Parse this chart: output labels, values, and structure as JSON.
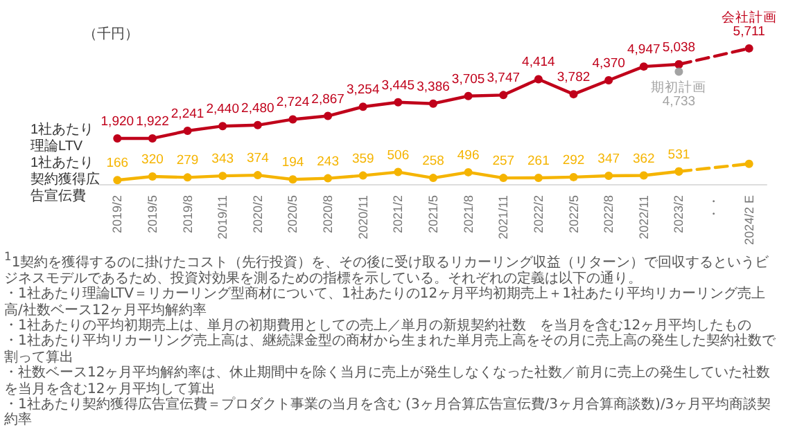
{
  "chart_data": {
    "type": "line",
    "categories": [
      "2019/2",
      "2019/5",
      "2019/8",
      "2019/11",
      "2020/2",
      "2020/5",
      "2020/8",
      "2020/11",
      "2021/2",
      "2021/5",
      "2021/8",
      "2021/11",
      "2022/2",
      "2022/5",
      "2022/8",
      "2022/11",
      "2023/2",
      "・・",
      "2024/2 E"
    ],
    "series": [
      {
        "name": "1社あたり理論LTV",
        "color": "#c0001a",
        "values": [
          1920,
          1922,
          2241,
          2440,
          2480,
          2724,
          2867,
          3254,
          3445,
          3386,
          3705,
          3747,
          4414,
          3782,
          4370,
          4947,
          5038,
          null,
          null
        ],
        "value_labels": [
          "1,920",
          "1,922",
          "2,241",
          "2,440",
          "2,480",
          "2,724",
          "2,867",
          "3,254",
          "3,445",
          "3,386",
          "3,705",
          "3,747",
          "4,414",
          "3,782",
          "4,370",
          "4,947",
          "5,038",
          null,
          null
        ]
      },
      {
        "name": "会社計画",
        "color": "#c0001a",
        "line_style": "dashed",
        "values": [
          null,
          null,
          null,
          null,
          null,
          null,
          null,
          null,
          null,
          null,
          null,
          null,
          null,
          null,
          null,
          null,
          5038,
          null,
          5711
        ],
        "value_labels": [
          null,
          null,
          null,
          null,
          null,
          null,
          null,
          null,
          null,
          null,
          null,
          null,
          null,
          null,
          null,
          null,
          null,
          null,
          "5,711"
        ]
      },
      {
        "name": "期初計画",
        "type": "scatter",
        "color": "#8c8c8c",
        "values": [
          null,
          null,
          null,
          null,
          null,
          null,
          null,
          null,
          null,
          null,
          null,
          null,
          null,
          null,
          null,
          null,
          4733,
          null,
          null
        ],
        "value_labels": [
          null,
          null,
          null,
          null,
          null,
          null,
          null,
          null,
          null,
          null,
          null,
          null,
          null,
          null,
          null,
          null,
          "4,733",
          null,
          null
        ]
      },
      {
        "name": "1社あたり契約獲得広告宣伝費",
        "color": "#f5b400",
        "values": [
          166,
          320,
          279,
          343,
          374,
          194,
          243,
          359,
          506,
          258,
          496,
          257,
          261,
          292,
          347,
          362,
          531,
          null,
          null
        ],
        "value_labels": [
          "166",
          "320",
          "279",
          "343",
          "374",
          "194",
          "243",
          "359",
          "506",
          "258",
          "496",
          "257",
          "261",
          "292",
          "347",
          "362",
          "531",
          null,
          null
        ]
      },
      {
        "color": "#f5b400",
        "line_style": "dashed",
        "values": [
          null,
          null,
          null,
          null,
          null,
          null,
          null,
          null,
          null,
          null,
          null,
          null,
          null,
          null,
          null,
          null,
          531,
          null,
          850
        ],
        "value_labels": [
          null,
          null,
          null,
          null,
          null,
          null,
          null,
          null,
          null,
          null,
          null,
          null,
          null,
          null,
          null,
          null,
          null,
          null,
          null
        ]
      }
    ],
    "legend": false,
    "grid": false,
    "marker": "circle",
    "line_style": "solid",
    "annotations": [
      "（千円）",
      "$^{1}$1契約を獲得するのに掛けたコスト（先行投資）を、その後に受け取るリカーリング収益（リターン）で回収するというビジネスモデルであるため、投資対効果を測るための指標を示している。それぞれの定義は以下の通り。",
      "・1社あたり理論LTV＝リカーリング型商材について、1社あたりの12ヶ月平均初期売上＋1社あたり平均リカーリング売上高/社数ベース12ヶ月平均解約率",
      "・1社あたりの平均初期売上は、単月の初期費用としての売上／単月の新規契約社数　を当月を含む12ヶ月平均したもの",
      "・1社あたり平均リカーリング売上高は、継続課金型の商材から生まれた単月売上高をその月に売上高の発生した契約社数で割って算出",
      "・社数ベース12ヶ月平均解約率は、休止期間中を除く当月に売上が発生しなくなった社数／前月に売上の発生していた社数を当月を含む12ヶ月平均して算出",
      "・1社あたり契約獲得広告宣伝費＝プロダクト事業の当月を含む (3ヶ月合算広告宣伝費/3ヶ月合算商談数)/3ヶ月平均商談契約率"
    ]
  }
}
